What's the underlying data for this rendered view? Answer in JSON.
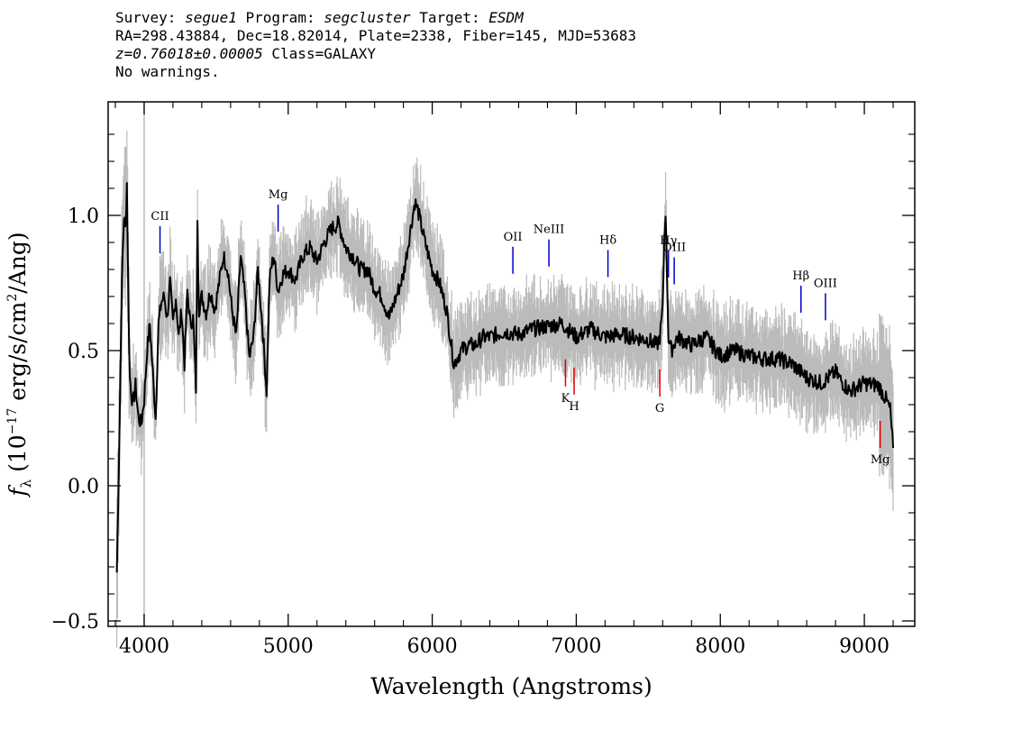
{
  "header": {
    "survey_label": "Survey:",
    "survey": "segue1",
    "program_label": "Program:",
    "program": "segcluster",
    "target_label": "Target:",
    "target": "ESDM",
    "line2": "RA=298.43884, Dec=18.82014, Plate=2338, Fiber=145, MJD=53683",
    "redshift": "z=0.76018±0.00005",
    "class": "Class=GALAXY",
    "warnings": "No warnings."
  },
  "chart_data": {
    "type": "line",
    "xlabel": "Wavelength (Angstroms)",
    "ylabel": "f_λ (10^-17 erg/s/cm²/Ang)",
    "xlim": [
      3750,
      9350
    ],
    "ylim": [
      -0.52,
      1.42
    ],
    "xticks": [
      "4000",
      "5000",
      "6000",
      "7000",
      "8000",
      "9000"
    ],
    "xtick_values": [
      4000,
      5000,
      6000,
      7000,
      8000,
      9000
    ],
    "yticks": [
      "−0.5",
      "0.0",
      "0.5",
      "1.0"
    ],
    "ytick_values": [
      -0.5,
      0.0,
      0.5,
      1.0
    ],
    "vertical_marker_x": 4000,
    "series": [
      {
        "color": "#000000",
        "x": [
          3810,
          3820,
          3830,
          3840,
          3850,
          3860,
          3870,
          3880,
          3890,
          3900,
          3920,
          3940,
          3960,
          3980,
          4000,
          4020,
          4040,
          4060,
          4080,
          4100,
          4120,
          4140,
          4160,
          4180,
          4200,
          4220,
          4240,
          4260,
          4280,
          4300,
          4320,
          4340,
          4360,
          4370,
          4380,
          4400,
          4430,
          4460,
          4490,
          4520,
          4550,
          4580,
          4610,
          4640,
          4670,
          4700,
          4730,
          4760,
          4790,
          4820,
          4850,
          4870,
          4880,
          4900,
          4930,
          4960,
          5000,
          5050,
          5100,
          5150,
          5200,
          5250,
          5300,
          5350,
          5400,
          5450,
          5500,
          5550,
          5600,
          5650,
          5700,
          5750,
          5800,
          5850,
          5880,
          5900,
          5950,
          6000,
          6050,
          6100,
          6150,
          6200,
          6250,
          6300,
          6350,
          6400,
          6500,
          6600,
          6700,
          6800,
          6900,
          7000,
          7100,
          7200,
          7300,
          7400,
          7500,
          7560,
          7580,
          7600,
          7610,
          7620,
          7640,
          7660,
          7700,
          7800,
          7900,
          8000,
          8100,
          8200,
          8300,
          8400,
          8500,
          8600,
          8700,
          8800,
          8850,
          8900,
          9000,
          9100,
          9150,
          9180,
          9200
        ],
        "y": [
          -0.32,
          -0.05,
          0.25,
          0.6,
          0.85,
          1.0,
          0.95,
          1.12,
          0.7,
          0.4,
          0.3,
          0.37,
          0.25,
          0.23,
          0.32,
          0.5,
          0.6,
          0.42,
          0.25,
          0.6,
          0.68,
          0.7,
          0.62,
          0.75,
          0.6,
          0.7,
          0.55,
          0.65,
          0.45,
          0.72,
          0.6,
          0.62,
          0.36,
          1.0,
          0.65,
          0.7,
          0.64,
          0.72,
          0.65,
          0.75,
          0.85,
          0.8,
          0.65,
          0.55,
          0.85,
          0.7,
          0.47,
          0.55,
          0.8,
          0.6,
          0.35,
          0.75,
          0.8,
          0.85,
          0.72,
          0.78,
          0.8,
          0.76,
          0.85,
          0.88,
          0.83,
          0.9,
          0.95,
          0.97,
          0.88,
          0.85,
          0.8,
          0.8,
          0.73,
          0.7,
          0.62,
          0.7,
          0.78,
          0.95,
          1.05,
          1.02,
          0.9,
          0.8,
          0.75,
          0.65,
          0.45,
          0.5,
          0.52,
          0.52,
          0.55,
          0.55,
          0.57,
          0.56,
          0.58,
          0.59,
          0.6,
          0.55,
          0.58,
          0.55,
          0.56,
          0.55,
          0.54,
          0.52,
          0.55,
          0.65,
          0.9,
          1.02,
          0.55,
          0.5,
          0.55,
          0.52,
          0.55,
          0.48,
          0.5,
          0.48,
          0.47,
          0.47,
          0.45,
          0.4,
          0.38,
          0.42,
          0.38,
          0.35,
          0.38,
          0.37,
          0.32,
          0.28,
          0.14
        ]
      }
    ],
    "spectral_lines": [
      {
        "label": "CII",
        "x": 4110,
        "color": "blue"
      },
      {
        "label": "Mg",
        "x": 4930,
        "color": "blue"
      },
      {
        "label": "OII",
        "x": 6560,
        "color": "blue"
      },
      {
        "label": "NeIII",
        "x": 6810,
        "color": "blue"
      },
      {
        "label": "Hδ",
        "x": 7220,
        "color": "blue"
      },
      {
        "label": "Hγ",
        "x": 7640,
        "color": "blue"
      },
      {
        "label": "OIII",
        "x": 7680,
        "color": "blue"
      },
      {
        "label": "Hβ",
        "x": 8560,
        "color": "blue"
      },
      {
        "label": "OIII",
        "x": 8730,
        "color": "blue"
      },
      {
        "label": "K",
        "x": 6925,
        "color": "red"
      },
      {
        "label": "H",
        "x": 6985,
        "color": "red"
      },
      {
        "label": "G",
        "x": 7580,
        "color": "red"
      },
      {
        "label": "Mg",
        "x": 9110,
        "color": "red"
      }
    ],
    "colors": {
      "flux": "#000000",
      "error": "#bbbbbb",
      "emission": "#0000cc",
      "absorption": "#dd0000"
    }
  }
}
